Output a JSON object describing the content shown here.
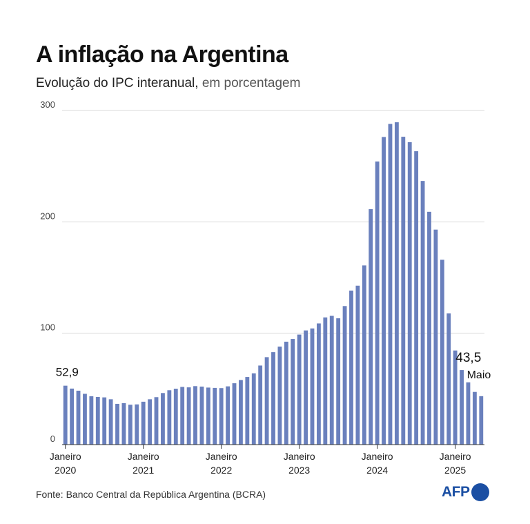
{
  "title": "A inflação na Argentina",
  "subtitle_main": "Evolução do IPC interanual,",
  "subtitle_unit": " em porcentagem",
  "source": "Fonte: Banco Central da República Argentina (BCRA)",
  "logo_text": "AFP",
  "colors": {
    "bar": "#6a80bd",
    "grid": "#d8d8d8",
    "axis": "#333333",
    "brand": "#1b4fa3"
  },
  "chart_data": {
    "type": "bar",
    "title": "A inflação na Argentina",
    "ylim": [
      0,
      300
    ],
    "yticks": [
      0,
      100,
      200,
      300
    ],
    "grid": true,
    "x_start": "2020-01",
    "x_end": "2025-05",
    "xtick_labels": [
      {
        "index": 0,
        "line1": "Janeiro",
        "line2": "2020"
      },
      {
        "index": 12,
        "line1": "Janeiro",
        "line2": "2021"
      },
      {
        "index": 24,
        "line1": "Janeiro",
        "line2": "2022"
      },
      {
        "index": 36,
        "line1": "Janeiro",
        "line2": "2023"
      },
      {
        "index": 48,
        "line1": "Janeiro",
        "line2": "2024"
      },
      {
        "index": 60,
        "line1": "Janeiro",
        "line2": "2025"
      }
    ],
    "values": [
      52.9,
      50.3,
      48.4,
      45.6,
      43.4,
      42.8,
      42.4,
      40.7,
      36.6,
      37.2,
      35.8,
      36.1,
      38.5,
      40.7,
      42.6,
      46.3,
      48.8,
      50.2,
      51.8,
      51.4,
      52.5,
      52.1,
      51.2,
      50.9,
      50.7,
      52.3,
      55.1,
      58.0,
      60.7,
      64.0,
      71.0,
      78.5,
      83.0,
      88.0,
      92.4,
      94.8,
      98.8,
      102.5,
      104.3,
      108.8,
      114.2,
      115.6,
      113.4,
      124.4,
      138.3,
      142.7,
      160.9,
      211.4,
      254.2,
      276.2,
      287.9,
      289.4,
      276.4,
      271.5,
      263.4,
      236.7,
      209.0,
      193.0,
      166.0,
      117.8,
      84.5,
      66.9,
      55.9,
      47.3,
      43.5
    ],
    "annotations": [
      {
        "index": 0,
        "text": "52,9"
      },
      {
        "index": 64,
        "text": "43,5",
        "subtext": "Maio"
      }
    ]
  }
}
